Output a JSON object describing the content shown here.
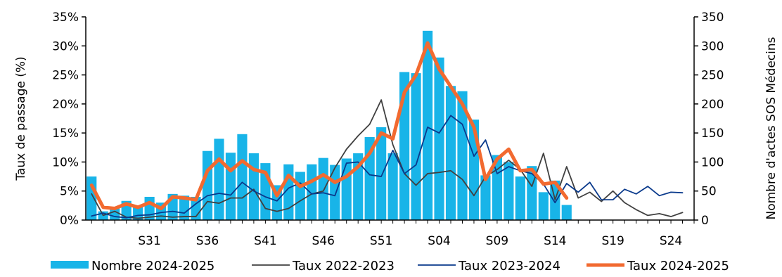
{
  "chart_data": {
    "type": "bar+line",
    "title": "",
    "x_tick_labels": [
      "S31",
      "S36",
      "S41",
      "S46",
      "S51",
      "S04",
      "S09",
      "S14",
      "S19",
      "S24"
    ],
    "x_tick_positions": [
      5,
      10,
      15,
      20,
      25,
      30,
      35,
      40,
      45,
      50
    ],
    "x_count": 52,
    "y_left": {
      "label": "Taux de passage (%)",
      "ticks": [
        "0%",
        "5%",
        "10%",
        "15%",
        "20%",
        "25%",
        "30%",
        "35%"
      ],
      "range": [
        0,
        35
      ]
    },
    "y_right": {
      "label": "Nombre d'actes SOS Médecins",
      "ticks": [
        "0",
        "50",
        "100",
        "150",
        "200",
        "250",
        "300",
        "350"
      ],
      "range": [
        0,
        350
      ]
    },
    "legend": {
      "placement": "bottom",
      "items": [
        "Nombre 2024-2025",
        "Taux 2022-2023",
        "Taux 2023-2024",
        "Taux 2024-2025"
      ]
    },
    "colors": {
      "bars": "#18b4e8",
      "taux_2022_2023": "#404040",
      "taux_2023_2024": "#0a3a8c",
      "taux_2024_2025": "#f26a30"
    },
    "bars": {
      "name": "Nombre 2024-2025",
      "axis": "right",
      "values": [
        75,
        15,
        20,
        33,
        25,
        40,
        30,
        45,
        42,
        40,
        119,
        140,
        116,
        148,
        115,
        98,
        60,
        96,
        83,
        96,
        107,
        95,
        106,
        115,
        143,
        160,
        115,
        255,
        253,
        326,
        280,
        231,
        222,
        173,
        77,
        112,
        100,
        75,
        93,
        48,
        68,
        26
      ]
    },
    "series": [
      {
        "name": "Taux 2022-2023",
        "axis": "left",
        "values": [
          4.5,
          0.8,
          1.5,
          0.5,
          0.3,
          0.5,
          0.7,
          0.5,
          0.6,
          0.6,
          3.2,
          2.9,
          3.8,
          3.8,
          5.3,
          2.0,
          1.5,
          2.0,
          3.3,
          4.5,
          5.0,
          9.0,
          12.2,
          14.5,
          16.5,
          20.7,
          13.0,
          8.0,
          6.0,
          8.0,
          8.2,
          8.5,
          7.0,
          4.2,
          7.5,
          8.7,
          10.3,
          8.7,
          5.8,
          11.5,
          3.5,
          9.2,
          3.8,
          4.8,
          3.2,
          5.0,
          3.0,
          1.8,
          0.8,
          1.1,
          0.6,
          1.3
        ]
      },
      {
        "name": "Taux 2023-2024",
        "axis": "left",
        "values": [
          0.7,
          1.2,
          0.6,
          0.4,
          0.8,
          0.9,
          1.3,
          1.5,
          1.2,
          2.8,
          4.2,
          4.6,
          4.3,
          6.5,
          5.0,
          4.0,
          3.3,
          5.5,
          6.4,
          4.5,
          4.7,
          4.2,
          9.8,
          10.0,
          7.8,
          7.5,
          12.0,
          8.0,
          9.5,
          16.0,
          15.0,
          18.0,
          16.5,
          11.0,
          13.8,
          8.0,
          9.2,
          8.5,
          8.0,
          6.2,
          3.0,
          6.3,
          4.8,
          6.5,
          3.5,
          3.5,
          5.3,
          4.5,
          5.8,
          4.2,
          4.8,
          4.7
        ]
      },
      {
        "name": "Taux 2024-2025",
        "axis": "left",
        "values": [
          6.0,
          2.2,
          2.0,
          2.8,
          2.2,
          3.0,
          2.0,
          4.0,
          3.8,
          3.5,
          8.5,
          10.5,
          8.5,
          10.2,
          8.7,
          8.2,
          4.2,
          7.7,
          5.8,
          6.7,
          7.8,
          6.5,
          7.5,
          9.2,
          11.5,
          15.0,
          14.0,
          22.0,
          25.0,
          30.5,
          26.0,
          23.0,
          20.0,
          16.0,
          7.0,
          10.5,
          12.2,
          8.5,
          8.7,
          6.2,
          6.5,
          3.8
        ]
      }
    ]
  }
}
